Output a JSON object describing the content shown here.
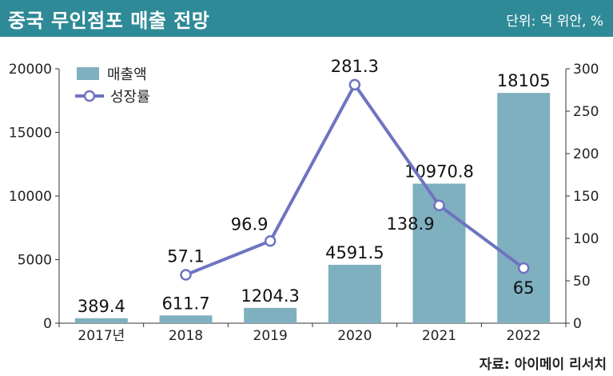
{
  "header": {
    "title": "중국 무인점포 매출 전망",
    "unit": "단위: 억 위안, %"
  },
  "source": "자료: 아이메이 리서치",
  "colors": {
    "header_bg": "#2f8a97",
    "bar": "#7fb0c0",
    "line": "#6e74c0"
  },
  "chart_data": {
    "type": "bar",
    "categories": [
      "2017년",
      "2018",
      "2019",
      "2020",
      "2021",
      "2022"
    ],
    "series": [
      {
        "name": "매출액",
        "type": "bar",
        "axis": "left",
        "values": [
          389.4,
          611.7,
          1204.3,
          4591.5,
          10970.8,
          18105
        ]
      },
      {
        "name": "성장률",
        "type": "line",
        "axis": "right",
        "values": [
          null,
          57.1,
          96.9,
          281.3,
          138.9,
          65
        ]
      }
    ],
    "bar_labels": [
      "389.4",
      "611.7",
      "1204.3",
      "4591.5",
      "10970.8",
      "18105"
    ],
    "line_labels": [
      "",
      "57.1",
      "96.9",
      "281.3",
      "138.9",
      "65"
    ],
    "y_left": {
      "min": 0,
      "max": 20000,
      "ticks": [
        "0",
        "5000",
        "10000",
        "15000",
        "20000"
      ]
    },
    "y_right": {
      "min": 0,
      "max": 300,
      "ticks": [
        "0",
        "50",
        "100",
        "150",
        "200",
        "250",
        "300"
      ]
    },
    "legend_position": "top-left",
    "grid": false
  }
}
